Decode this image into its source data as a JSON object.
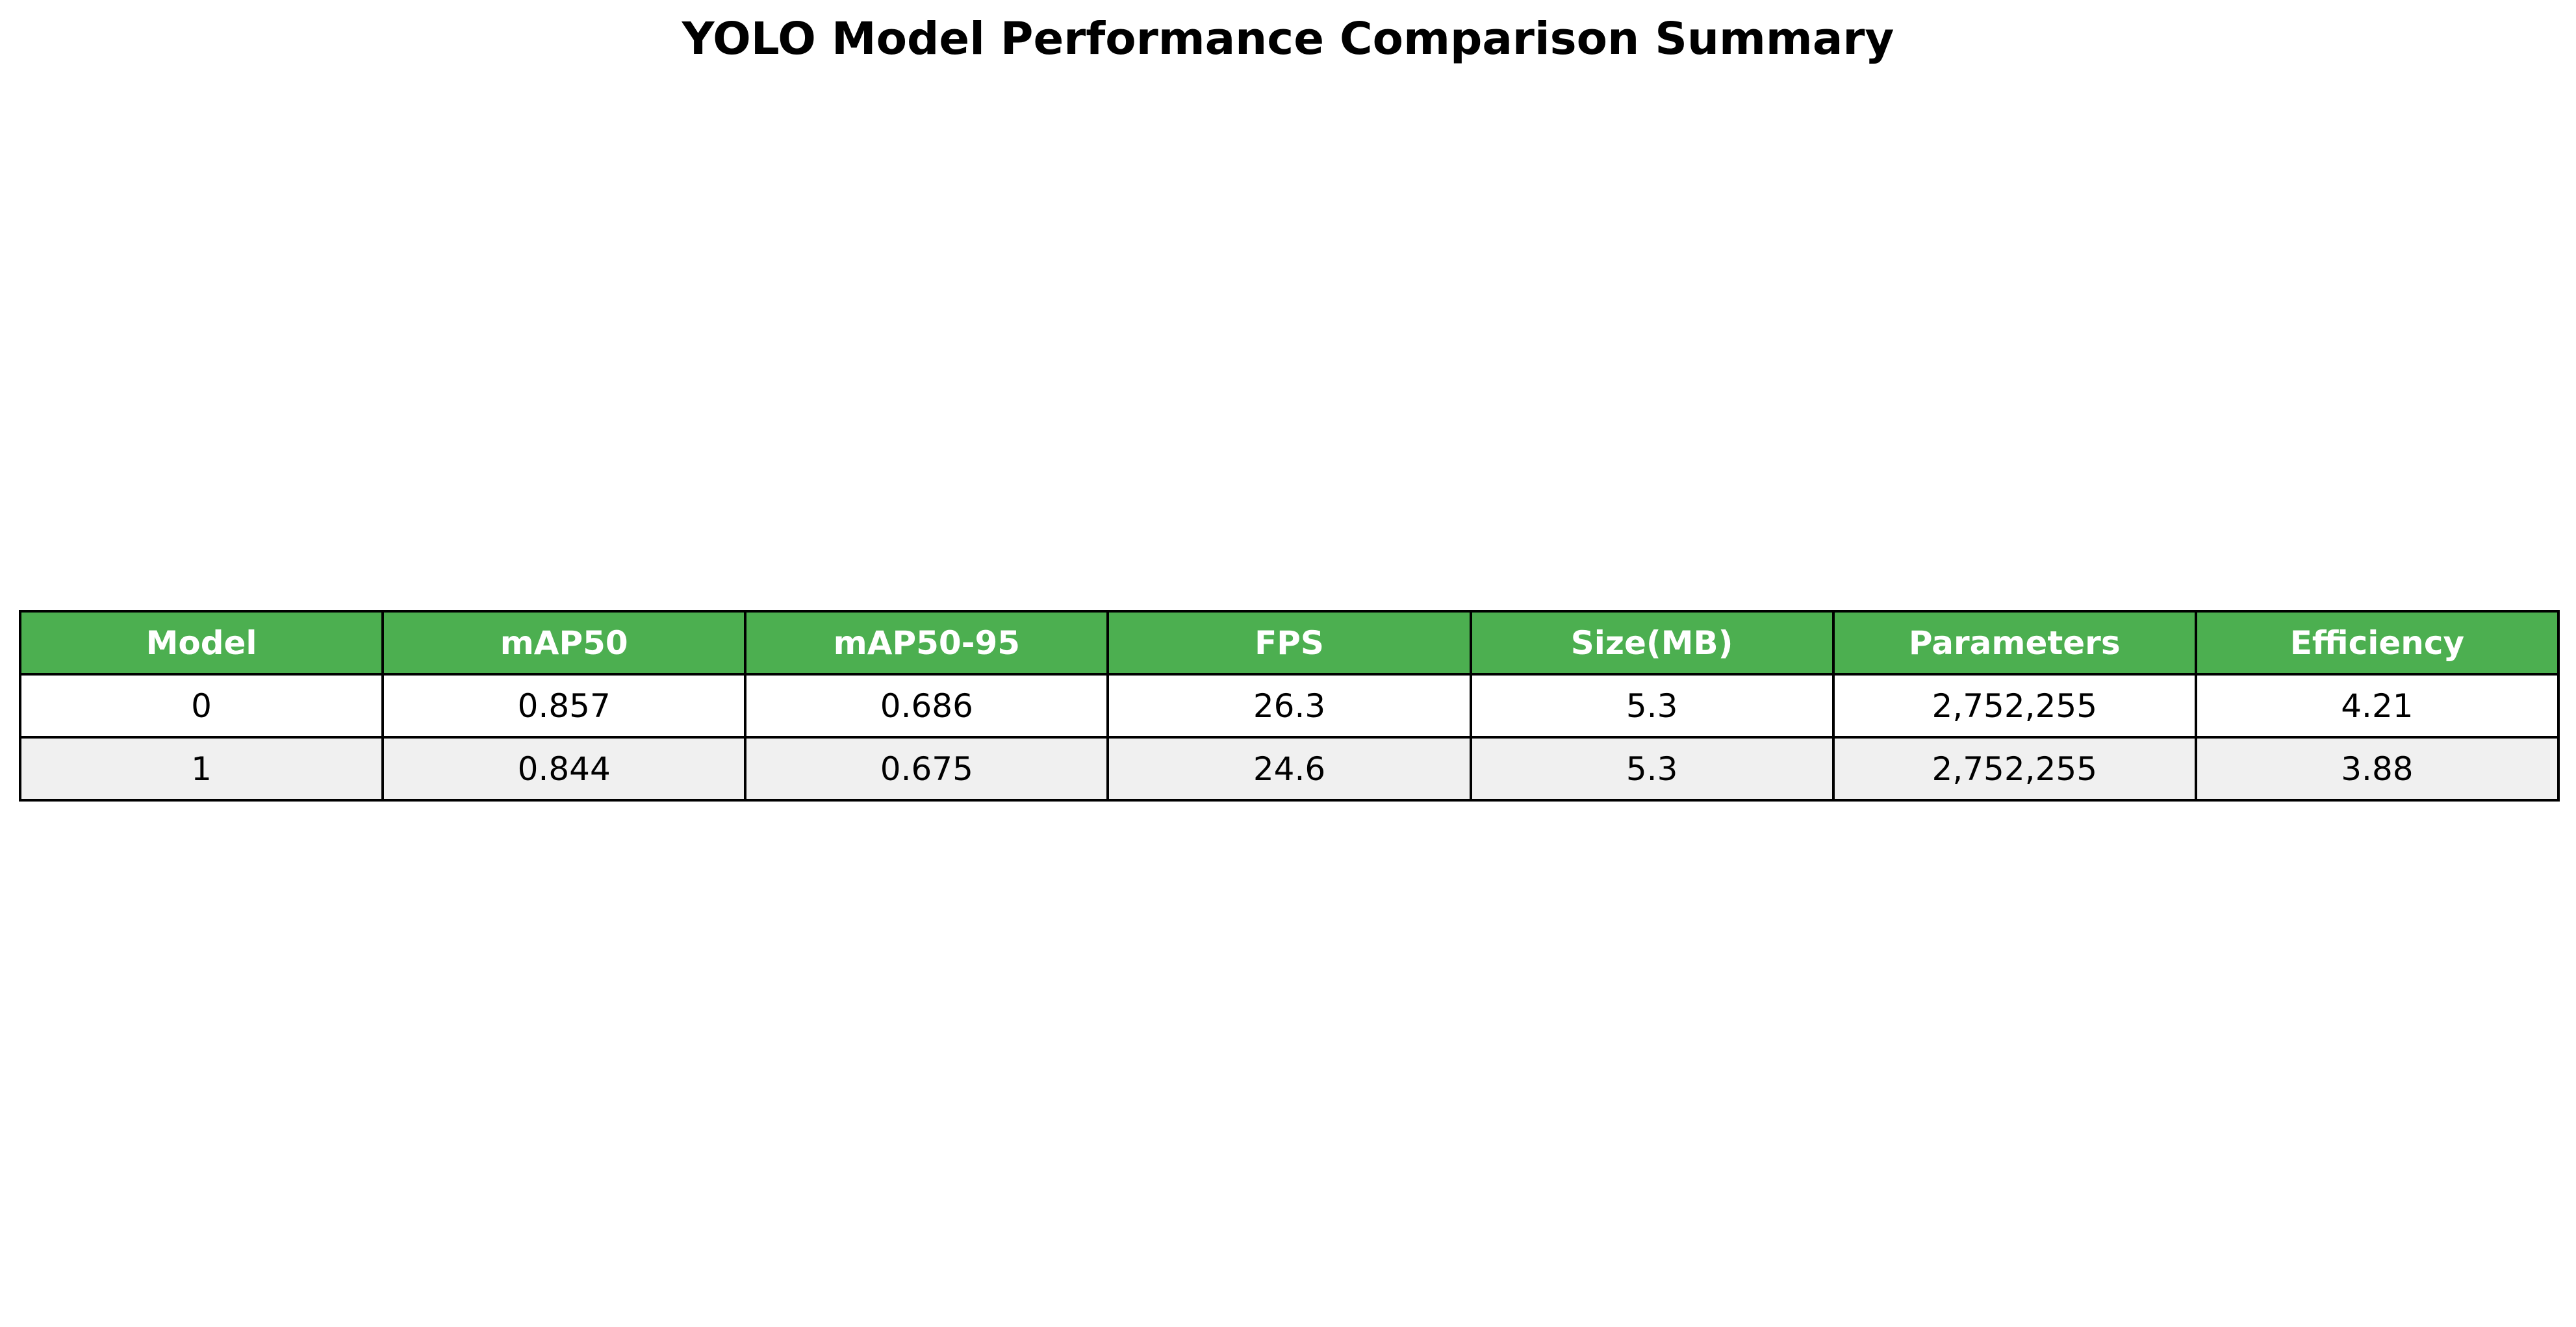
{
  "chart_data": {
    "type": "table",
    "title": "YOLO Model Performance Comparison Summary",
    "columns": [
      "Model",
      "mAP50",
      "mAP50-95",
      "FPS",
      "Size(MB)",
      "Parameters",
      "Efficiency"
    ],
    "rows": [
      [
        "0",
        "0.857",
        "0.686",
        "26.3",
        "5.3",
        "2,752,255",
        "4.21"
      ],
      [
        "1",
        "0.844",
        "0.675",
        "24.6",
        "5.3",
        "2,752,255",
        "3.88"
      ]
    ],
    "colors": {
      "header_bg": "#4caf50",
      "header_text": "#ffffff",
      "row_alt_bg": "#f0f0f0",
      "border": "#000000"
    }
  }
}
